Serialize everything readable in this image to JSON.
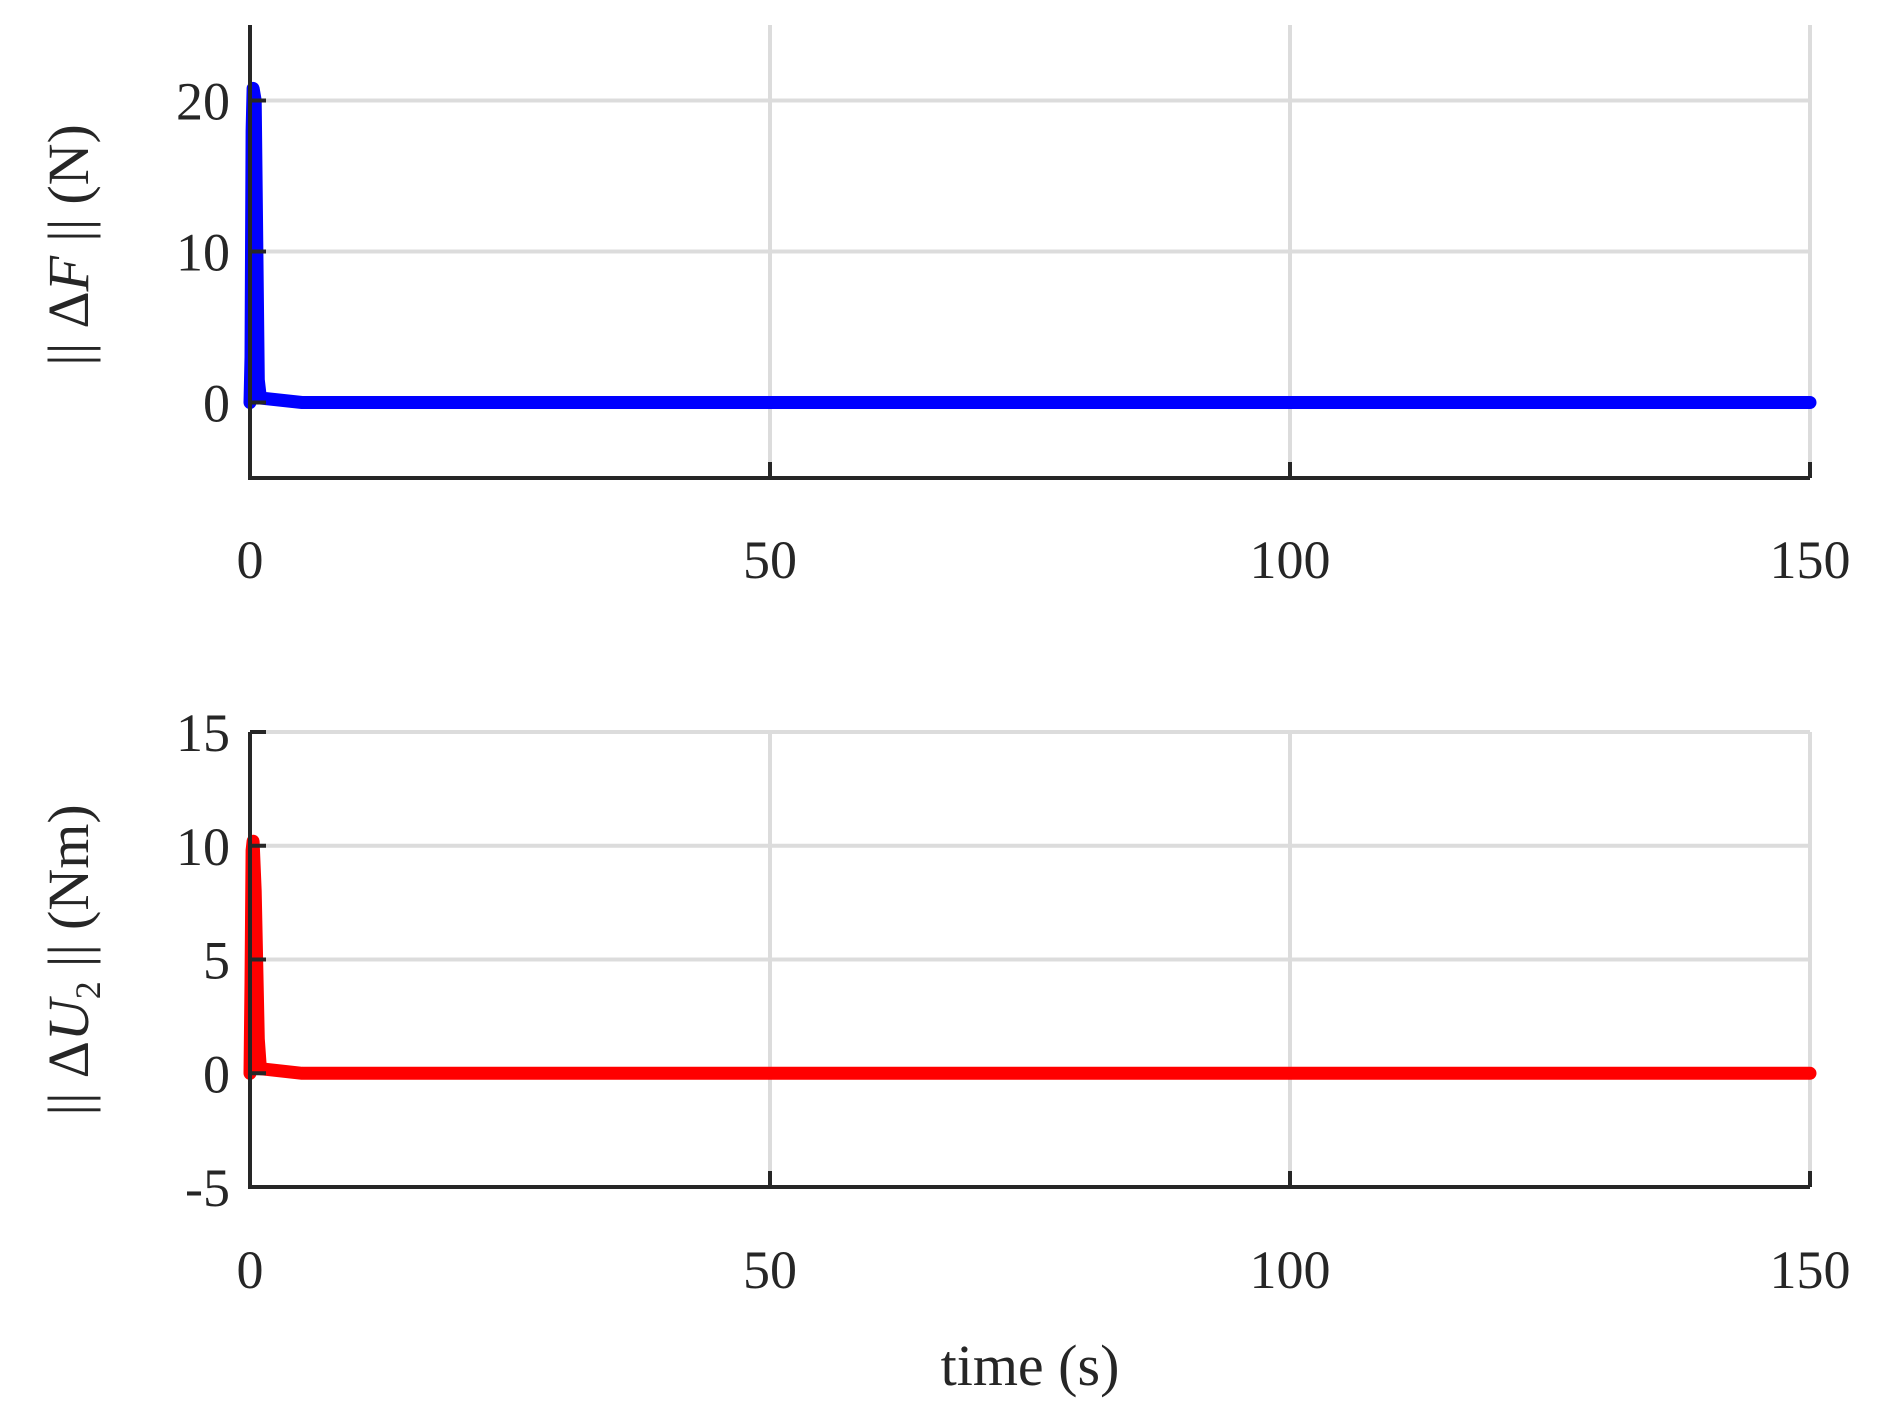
{
  "chart_data": [
    {
      "type": "line",
      "xlabel": "",
      "ylabel": "|| ΔF || (N)",
      "ylabel_parts": {
        "bars_left": "||",
        "delta": "Δ",
        "symbol": "F",
        "subscript": "",
        "bars_right": "||",
        "unit": "(N)"
      },
      "xlim": [
        0,
        150
      ],
      "ylim": [
        -5,
        25
      ],
      "xticks": [
        0,
        50,
        100,
        150
      ],
      "xtick_labels": [
        "0",
        "50",
        "100",
        "150"
      ],
      "yticks": [
        0,
        10,
        20
      ],
      "ytick_labels": [
        "0",
        "10",
        "20"
      ],
      "grid": true,
      "box": "bottom-left",
      "series": [
        {
          "color": "#0000ff",
          "x": [
            0,
            0.1,
            0.2,
            0.3,
            0.5,
            0.8,
            1.0,
            5,
            150
          ],
          "y": [
            0,
            3,
            18,
            20.8,
            20,
            1.5,
            0.3,
            0,
            0
          ]
        }
      ]
    },
    {
      "type": "line",
      "xlabel": "time (s)",
      "ylabel": "|| ΔU2 || (Nm)",
      "ylabel_parts": {
        "bars_left": "||",
        "delta": "Δ",
        "symbol": "U",
        "subscript": "2",
        "bars_right": "||",
        "unit": "(Nm)"
      },
      "xlim": [
        0,
        150
      ],
      "ylim": [
        -5,
        15
      ],
      "xticks": [
        0,
        50,
        100,
        150
      ],
      "xtick_labels": [
        "0",
        "50",
        "100",
        "150"
      ],
      "yticks": [
        -5,
        0,
        5,
        10,
        15
      ],
      "ytick_labels": [
        "-5",
        "0",
        "5",
        "10",
        "15"
      ],
      "grid": true,
      "box": "bottom-left",
      "series": [
        {
          "color": "#ff0000",
          "x": [
            0,
            0.1,
            0.2,
            0.3,
            0.5,
            0.8,
            1.0,
            5,
            150
          ],
          "y": [
            0,
            4,
            9.8,
            10.2,
            8,
            1.5,
            0.2,
            0,
            0
          ]
        }
      ]
    }
  ]
}
